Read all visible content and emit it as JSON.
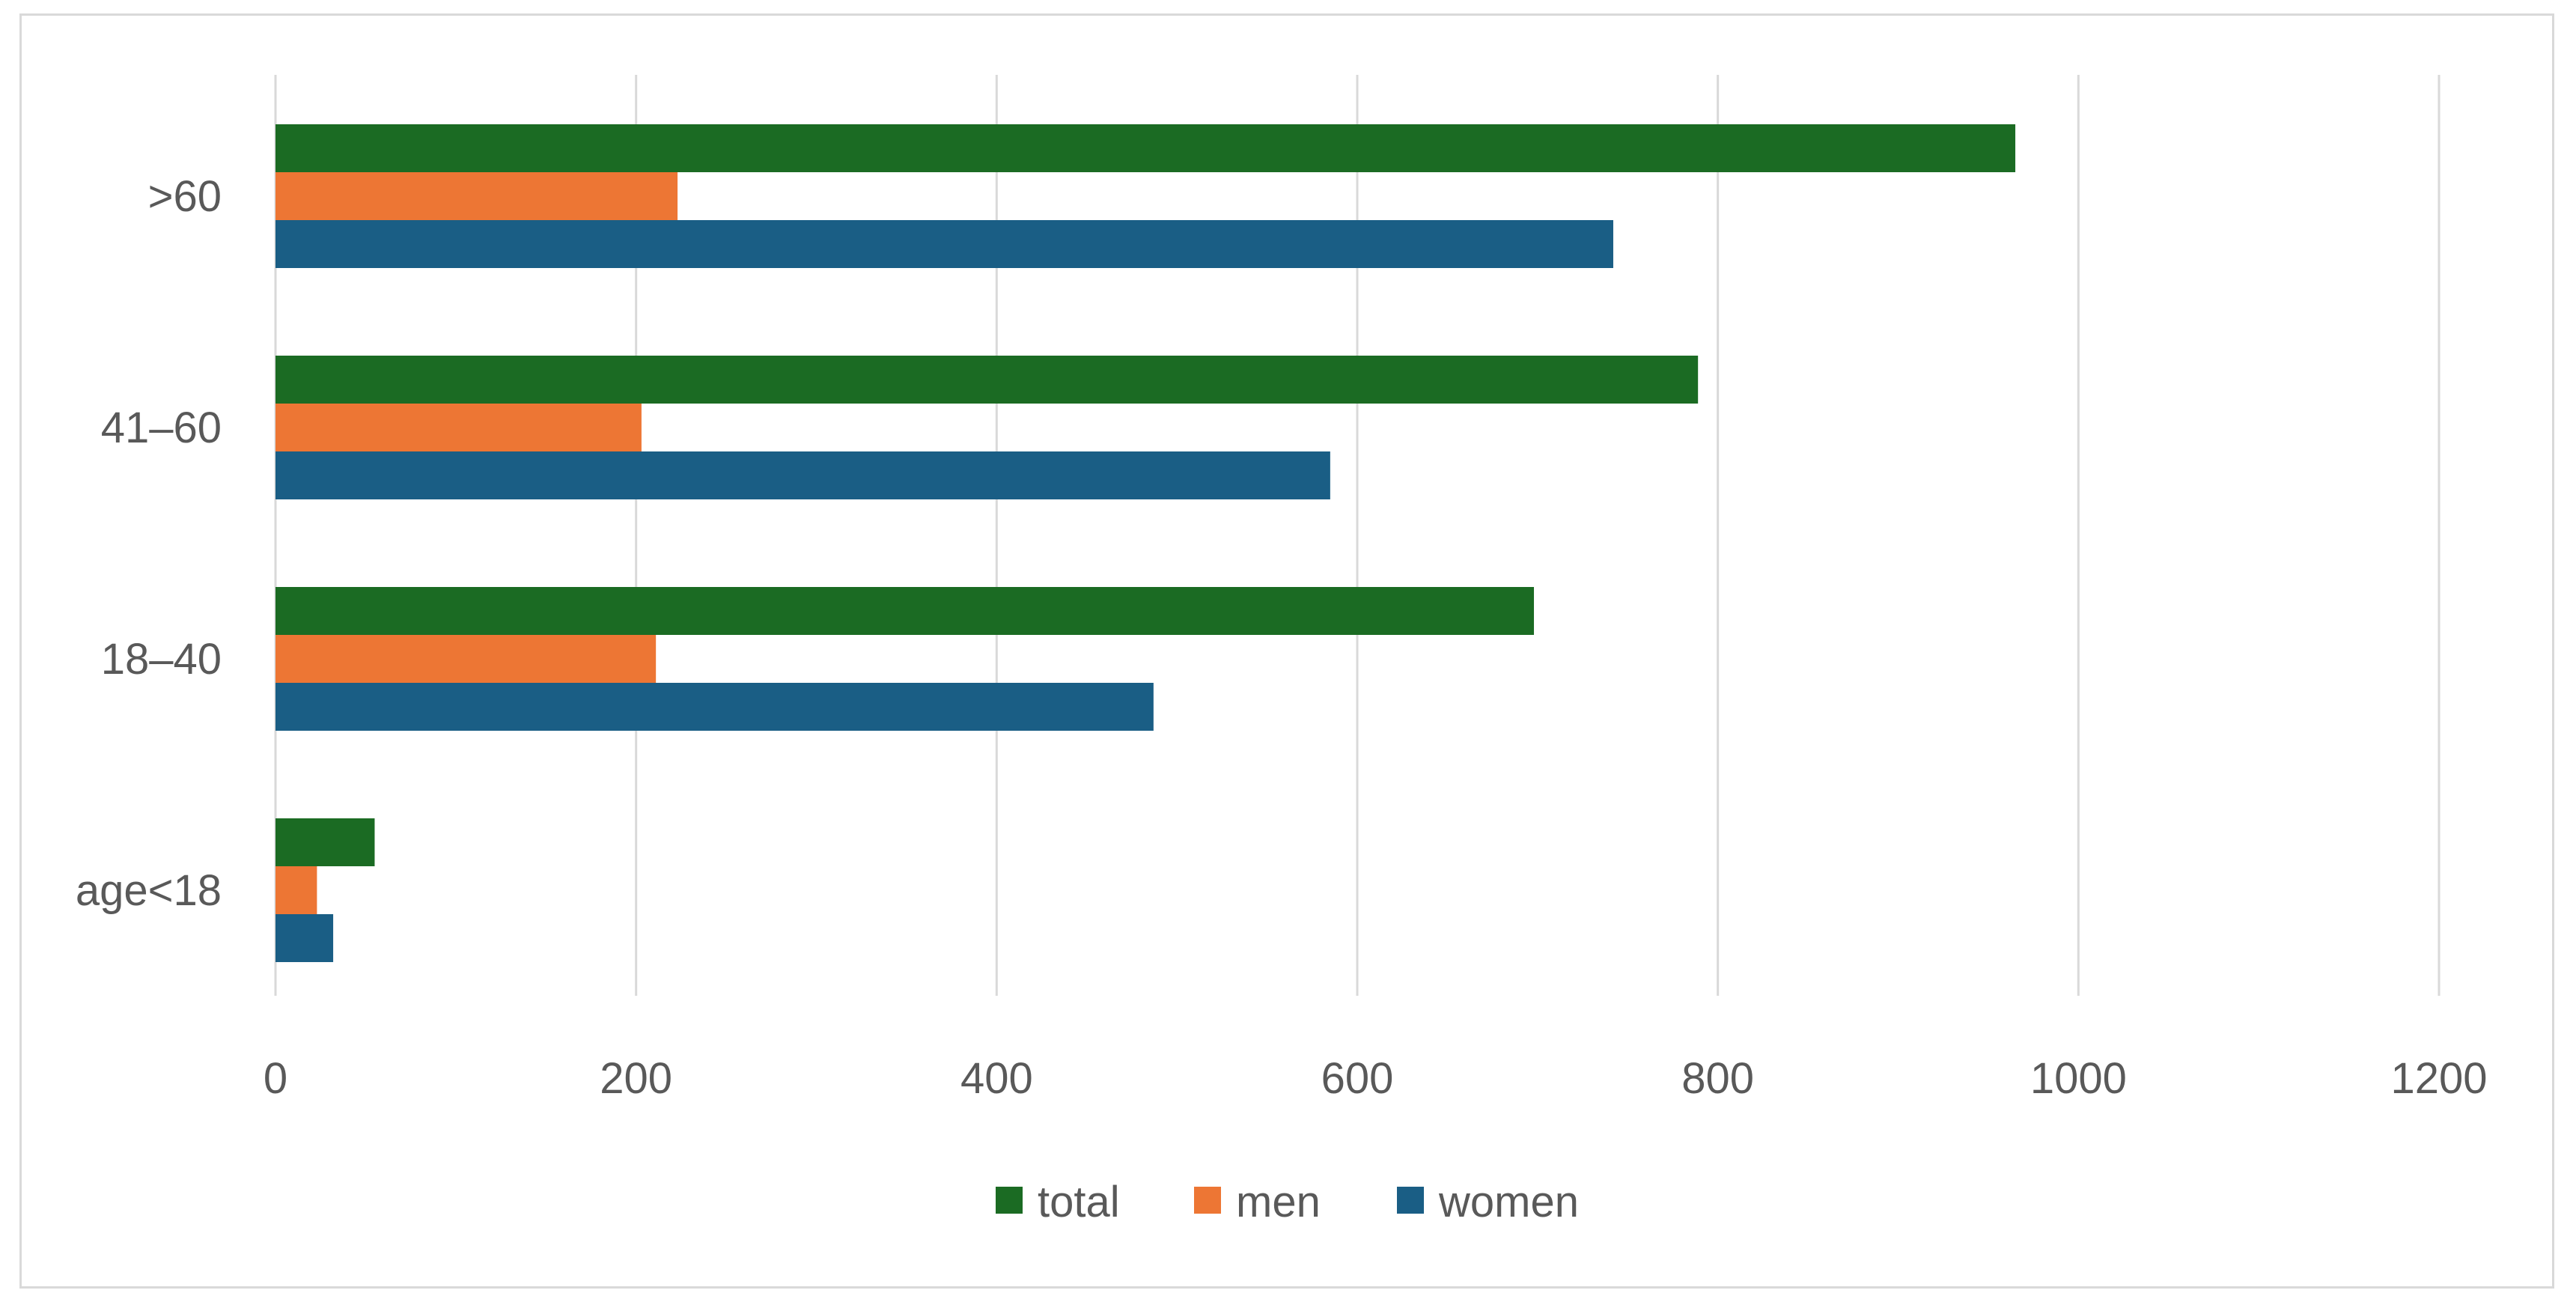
{
  "chart_data": {
    "type": "bar",
    "orientation": "horizontal",
    "categories": [
      ">60",
      "41–60",
      "18–40",
      "age<18"
    ],
    "series": [
      {
        "name": "total",
        "color": "#1b6b23",
        "values": [
          965,
          789,
          698,
          55
        ]
      },
      {
        "name": "men",
        "color": "#ed7634",
        "values": [
          223,
          203,
          211,
          23
        ]
      },
      {
        "name": "women",
        "color": "#1a5e85",
        "values": [
          742,
          585,
          487,
          32
        ]
      }
    ],
    "xlim": [
      0,
      1200
    ],
    "xticks": [
      "0",
      "200",
      "400",
      "600",
      "800",
      "1000",
      "1200"
    ],
    "grid": "vertical",
    "legend_position": "bottom",
    "title": "",
    "xlabel": "",
    "ylabel": ""
  },
  "colors": {
    "grid": "#d9d9d9",
    "text": "#595959",
    "border": "#d9d9d9"
  }
}
